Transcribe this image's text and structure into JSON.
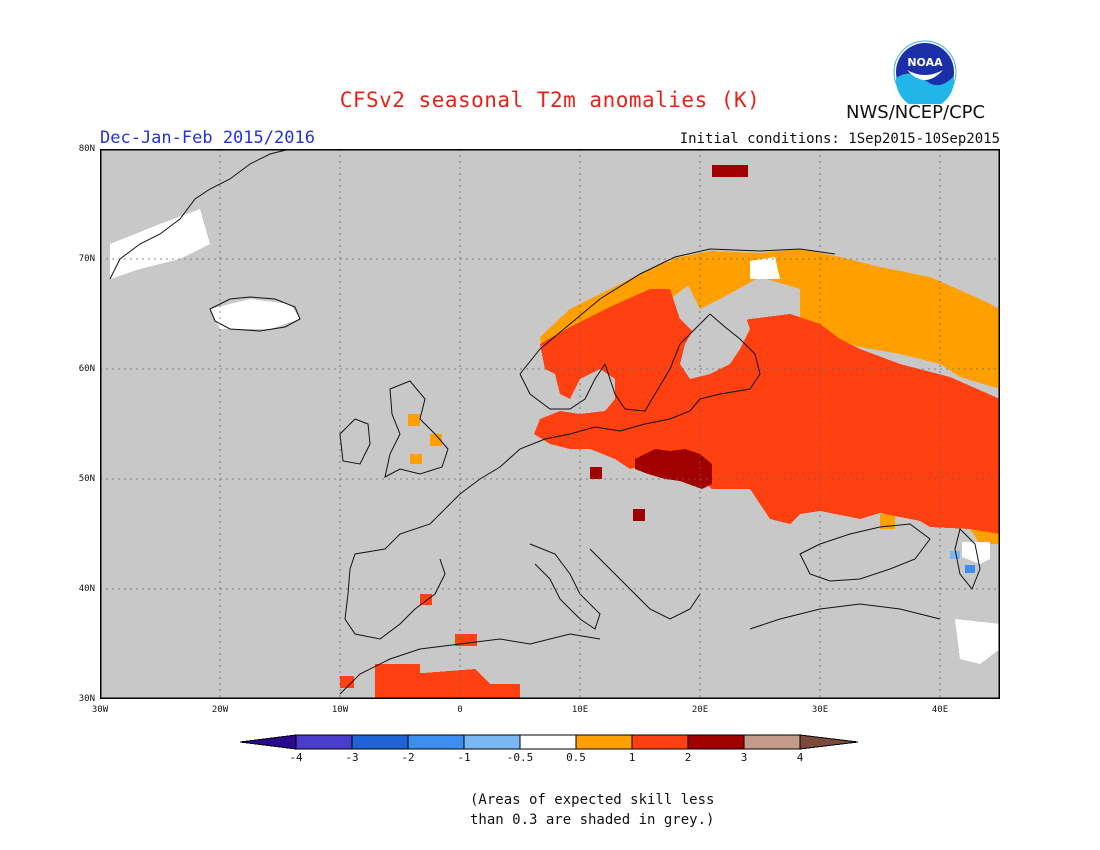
{
  "header": {
    "title": "CFSv2 seasonal T2m anomalies (K)",
    "season": "Dec-Jan-Feb 2015/2016",
    "initial_conditions": "Initial conditions: 1Sep2015-10Sep2015",
    "agency": "NWS/NCEP/CPC",
    "logo_text": "NOAA"
  },
  "map": {
    "region": "Europe",
    "lon_range": [
      -30,
      45
    ],
    "lat_range": [
      30,
      80
    ],
    "lat_labels": [
      "30N",
      "40N",
      "50N",
      "60N",
      "70N",
      "80N"
    ],
    "lon_labels": [
      "30W",
      "20W",
      "10W",
      "0",
      "10E",
      "20E",
      "30E",
      "40E"
    ],
    "background_color": "#c8c8c8",
    "grid": true
  },
  "colorbar": {
    "labels": [
      "-4",
      "-3",
      "-2",
      "-1",
      "-0.5",
      "0.5",
      "1",
      "2",
      "3",
      "4"
    ],
    "colors": [
      "#2a0a8c",
      "#4a3ccc",
      "#1f63d6",
      "#3c8ef0",
      "#7ab8f5",
      "#ffffff",
      "#ffa000",
      "#ff4010",
      "#a00000",
      "#c49a8a",
      "#7a4a3a"
    ]
  },
  "note": {
    "line1": "(Areas of expected skill less",
    "line2": "than 0.3 are shaded in grey.)"
  }
}
